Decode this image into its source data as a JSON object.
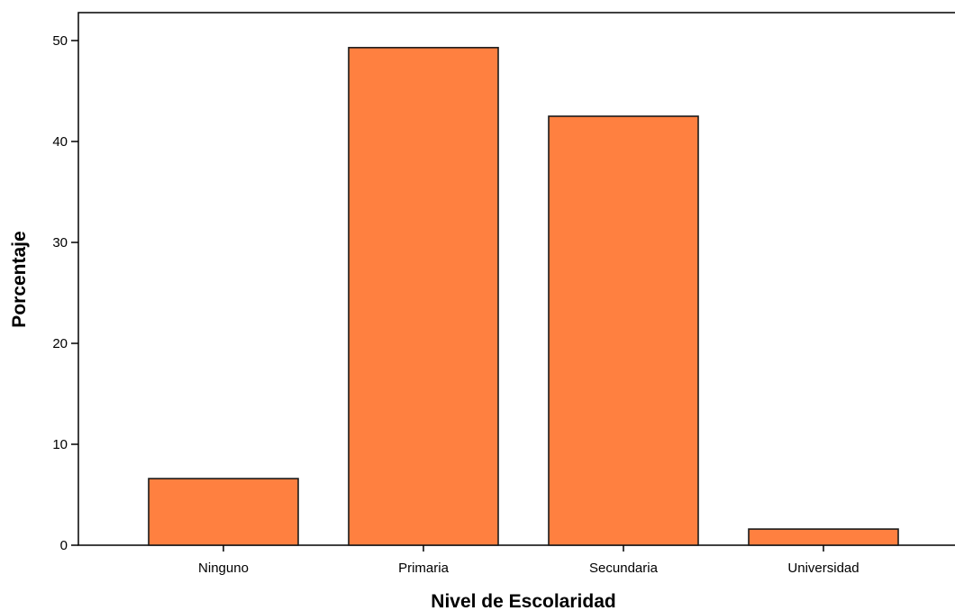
{
  "chart_data": {
    "type": "bar",
    "title": "",
    "xlabel": "Nivel de Escolaridad",
    "ylabel": "Porcentaje",
    "categories": [
      "Ninguno",
      "Primaria",
      "Secundaria",
      "Universidad"
    ],
    "values": [
      6.6,
      49.3,
      42.5,
      1.6
    ],
    "ylim": [
      0,
      50
    ],
    "yticks": [
      0,
      10,
      20,
      30,
      40,
      50
    ],
    "grid": false,
    "legend": "none",
    "colors": {
      "bar_fill": "#FF8040",
      "bar_stroke": "#1a1a1a",
      "axis": "#000000"
    }
  }
}
